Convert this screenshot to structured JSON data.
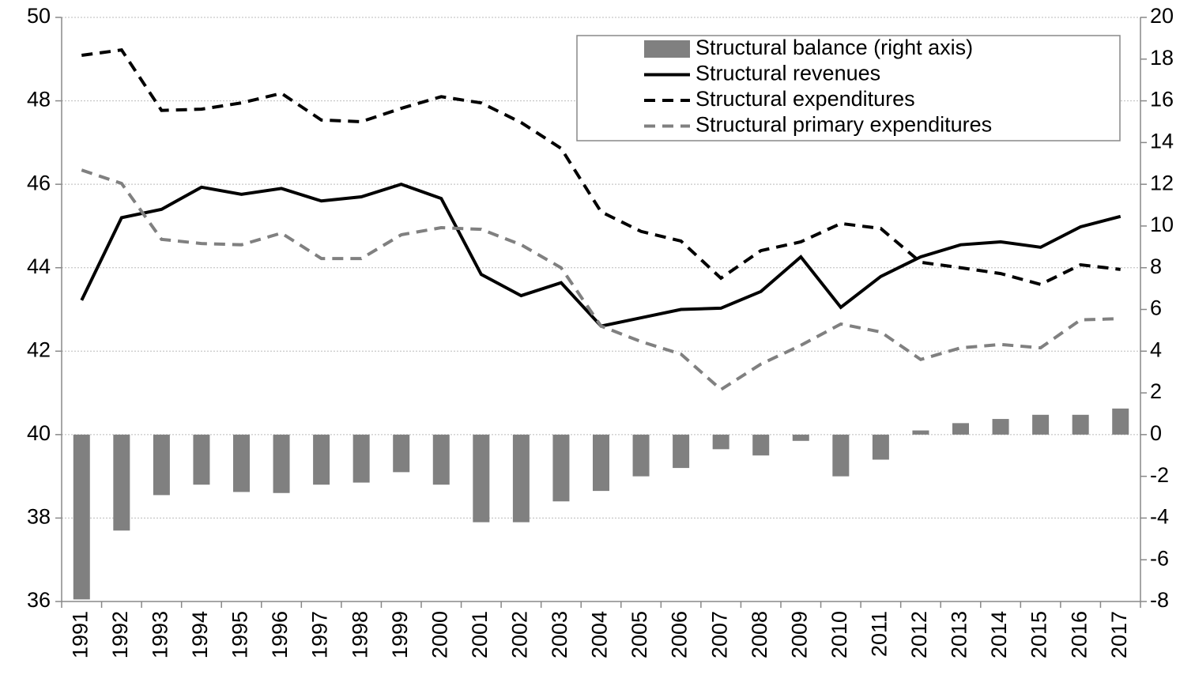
{
  "chart_data": {
    "type": "combo",
    "categories": [
      "1991",
      "1992",
      "1993",
      "1994",
      "1995",
      "1996",
      "1997",
      "1998",
      "1999",
      "2000",
      "2001",
      "2002",
      "2003",
      "2004",
      "2005",
      "2006",
      "2007",
      "2008",
      "2009",
      "2010",
      "2011",
      "2012",
      "2013",
      "2014",
      "2015",
      "2016",
      "2017"
    ],
    "series": [
      {
        "name": "Structural balance (right axis)",
        "type": "bar",
        "axis": "y2",
        "color": "#808080",
        "values": [
          -7.9,
          -4.6,
          -2.9,
          -2.4,
          -2.75,
          -2.8,
          -2.4,
          -2.3,
          -1.8,
          -2.4,
          -4.2,
          -4.2,
          -3.2,
          -2.7,
          -2.0,
          -1.6,
          -0.7,
          -1.0,
          -0.3,
          -2.0,
          -1.2,
          0.2,
          0.55,
          0.75,
          0.95,
          0.95,
          1.25
        ]
      },
      {
        "name": "Structural revenues",
        "type": "line",
        "dash": "solid",
        "color": "#000000",
        "values": [
          43.22,
          45.2,
          45.4,
          45.93,
          45.76,
          45.9,
          45.6,
          45.7,
          46.0,
          45.66,
          43.84,
          43.33,
          43.64,
          42.6,
          42.8,
          43.0,
          43.03,
          43.43,
          44.26,
          43.05,
          43.79,
          44.26,
          44.55,
          44.62,
          44.49,
          44.98,
          45.23
        ]
      },
      {
        "name": "Structural expenditures",
        "type": "line",
        "dash": "dashed",
        "color": "#000000",
        "values": [
          49.09,
          49.22,
          47.77,
          47.8,
          47.95,
          48.18,
          47.54,
          47.5,
          47.82,
          48.1,
          47.95,
          47.48,
          46.86,
          45.34,
          44.87,
          44.64,
          43.75,
          44.41,
          44.62,
          45.06,
          44.94,
          44.13,
          44.0,
          43.86,
          43.6,
          44.07,
          43.96
        ]
      },
      {
        "name": "Structural primary expenditures",
        "type": "line",
        "dash": "dashed",
        "color": "#808080",
        "values": [
          46.34,
          46.02,
          44.68,
          44.58,
          44.55,
          44.83,
          44.22,
          44.22,
          44.79,
          44.96,
          44.92,
          44.55,
          44.0,
          42.6,
          42.23,
          41.93,
          41.08,
          41.69,
          42.14,
          42.65,
          42.46,
          41.8,
          42.08,
          42.16,
          42.08,
          42.75,
          42.78
        ]
      }
    ],
    "ylim": [
      36,
      50
    ],
    "yticks": [
      36,
      38,
      40,
      42,
      44,
      46,
      48,
      50
    ],
    "y2lim": [
      -8,
      20
    ],
    "y2ticks": [
      -8,
      -6,
      -4,
      -2,
      0,
      2,
      4,
      6,
      8,
      10,
      12,
      14,
      16,
      18,
      20
    ],
    "grid": true,
    "legend": "upper right"
  }
}
